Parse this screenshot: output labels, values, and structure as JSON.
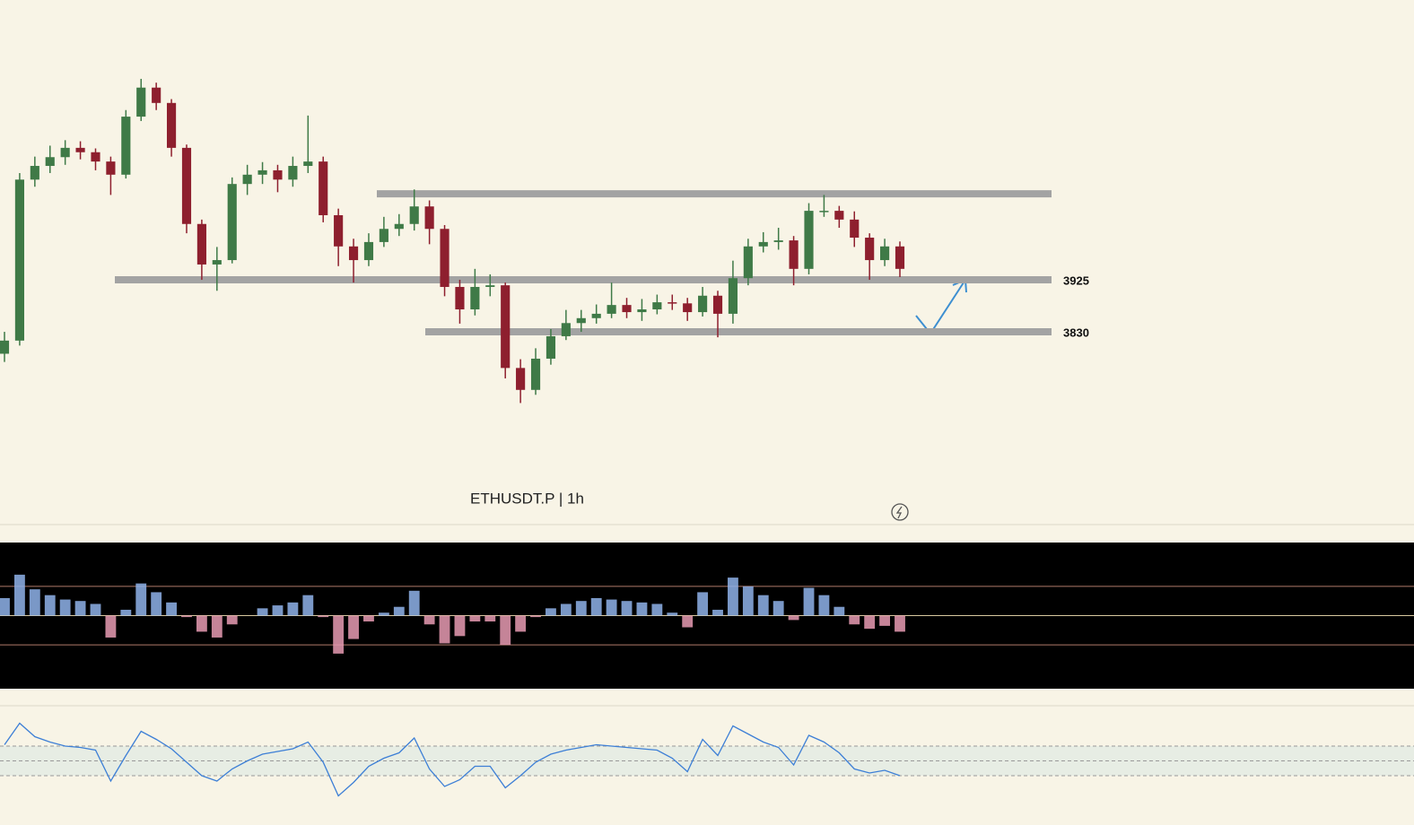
{
  "chart_data": {
    "type": "candlestick",
    "title": "ETHUSDT.P | 1h",
    "ylim": [
      3478,
      4436
    ],
    "up_color": "#3f7a47",
    "down_color": "#8e1f2e",
    "level_color": "#a3a3a3",
    "upper_line": 4082,
    "levels": [
      3925,
      3830
    ],
    "open": [
      3790,
      3814,
      4108,
      4133,
      4149,
      4166,
      4158,
      4141,
      4117,
      4223,
      4276,
      4248,
      4166,
      4027,
      3953,
      3961,
      4100,
      4117,
      4125,
      4108,
      4133,
      4141,
      4043,
      3986,
      3961,
      3994,
      4018,
      4027,
      4059,
      4018,
      3912,
      3871,
      3912,
      3915,
      3764,
      3724,
      3781,
      3822,
      3846,
      3855,
      3863,
      3879,
      3866,
      3871,
      3884,
      3882,
      3866,
      3896,
      3863,
      3928,
      3986,
      3994,
      3997,
      3945,
      4051,
      4051,
      4035,
      4002,
      3961,
      3986
    ],
    "high": [
      3830,
      4120,
      4150,
      4170,
      4180,
      4178,
      4165,
      4150,
      4235,
      4292,
      4285,
      4255,
      4172,
      4035,
      3985,
      4112,
      4135,
      4140,
      4135,
      4150,
      4225,
      4150,
      4055,
      4000,
      4010,
      4040,
      4045,
      4090,
      4070,
      4025,
      3925,
      3945,
      3935,
      3920,
      3780,
      3800,
      3835,
      3870,
      3870,
      3880,
      3920,
      3892,
      3890,
      3898,
      3898,
      3892,
      3912,
      3905,
      3960,
      4000,
      4012,
      4020,
      4005,
      4065,
      4080,
      4060,
      4050,
      4010,
      4000,
      3995
    ],
    "low": [
      3775,
      3805,
      4095,
      4120,
      4135,
      4145,
      4125,
      4080,
      4110,
      4215,
      4235,
      4150,
      4010,
      3925,
      3905,
      3955,
      4080,
      4100,
      4085,
      4095,
      4120,
      4030,
      3950,
      3920,
      3950,
      3985,
      4005,
      4015,
      3990,
      3895,
      3845,
      3860,
      3895,
      3745,
      3700,
      3715,
      3770,
      3815,
      3830,
      3845,
      3855,
      3855,
      3850,
      3862,
      3870,
      3850,
      3858,
      3820,
      3845,
      3915,
      3975,
      3980,
      3915,
      3935,
      4040,
      4020,
      3985,
      3925,
      3950,
      3930
    ],
    "close": [
      3814,
      4108,
      4133,
      4149,
      4166,
      4158,
      4141,
      4117,
      4223,
      4276,
      4248,
      4166,
      4027,
      3953,
      3961,
      4100,
      4117,
      4125,
      4108,
      4133,
      4141,
      4043,
      3986,
      3961,
      3994,
      4018,
      4027,
      4059,
      4018,
      3912,
      3871,
      3912,
      3915,
      3764,
      3724,
      3781,
      3822,
      3846,
      3855,
      3863,
      3879,
      3866,
      3871,
      3884,
      3882,
      3866,
      3896,
      3863,
      3928,
      3986,
      3994,
      3997,
      3945,
      4051,
      4051,
      4035,
      4002,
      3961,
      3986,
      3945
    ],
    "histogram": {
      "ylim": [
        -50,
        50
      ],
      "lines": [
        20,
        0,
        -20
      ],
      "pos_color": "#8fb3ea",
      "neg_color": "#e79bb3",
      "values": [
        12,
        28,
        18,
        14,
        11,
        10,
        8,
        -15,
        4,
        22,
        16,
        9,
        -1,
        -11,
        -15,
        -6,
        0,
        5,
        7,
        9,
        14,
        -1,
        -26,
        -16,
        -4,
        2,
        6,
        17,
        -6,
        -19,
        -14,
        -4,
        -4,
        -20,
        -11,
        -1,
        5,
        8,
        10,
        12,
        11,
        10,
        9,
        8,
        2,
        -8,
        16,
        4,
        26,
        20,
        14,
        10,
        -3,
        19,
        14,
        6,
        -6,
        -9,
        -7,
        -11
      ]
    },
    "oscillator": {
      "ylim": [
        15,
        95
      ],
      "bands": [
        67,
        56,
        45
      ],
      "color": "#3d7fd6",
      "values": [
        68,
        84,
        74,
        70,
        67,
        66,
        64,
        41,
        60,
        78,
        72,
        65,
        55,
        45,
        41,
        50,
        56,
        61,
        63,
        65,
        70,
        55,
        30,
        40,
        52,
        58,
        62,
        73,
        50,
        37,
        42,
        52,
        52,
        36,
        45,
        55,
        61,
        64,
        66,
        68,
        67,
        66,
        65,
        64,
        58,
        48,
        72,
        60,
        82,
        76,
        70,
        66,
        53,
        75,
        70,
        62,
        50,
        47,
        49,
        45
      ]
    }
  }
}
